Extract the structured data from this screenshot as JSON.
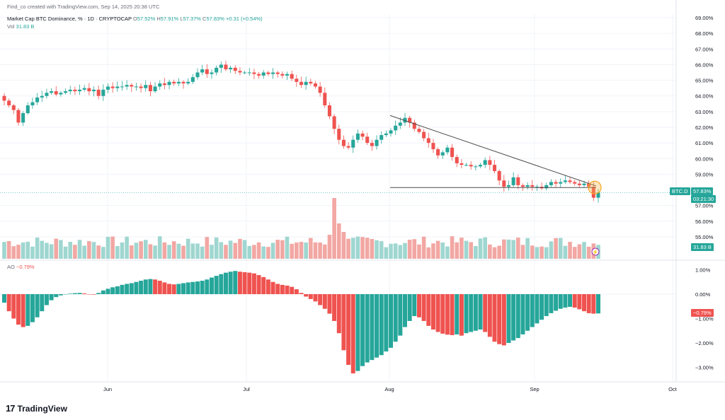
{
  "header": {
    "creator": "Find_co created with TradingView.com, Sep 14, 2025 20:38 UTC",
    "symbol": "Market Cap BTC Dominance, % · 1D · CRYPTOCAP",
    "open_label": "O",
    "open": "57.52%",
    "high_label": "H",
    "high": "57.91%",
    "low_label": "L",
    "low": "57.37%",
    "close_label": "C",
    "close": "57.83%",
    "change": "+0.31 (+0.54%)",
    "vol_label": "Vol",
    "vol_value": "31.83 B"
  },
  "ao": {
    "label": "AO",
    "value": "−0.79%"
  },
  "badges": {
    "symbol": "BTC.D",
    "price": "57.83%",
    "timer": "03:21:30",
    "volume": "31.83 B",
    "ao": "−0.79%"
  },
  "branding": {
    "logo_mark": "17",
    "name": "TradingView"
  },
  "colors": {
    "up": "#26a69a",
    "down": "#ef5350",
    "up_vol": "#9fd6d0",
    "down_vol": "#f2a7a3",
    "grid": "#f0f3fa"
  },
  "chart_data": [
    {
      "type": "candlestick",
      "title": "Market Cap BTC Dominance, % · 1D · CRYPTOCAP",
      "x_axis": {
        "ticks": [
          "Jun",
          "Jul",
          "Aug",
          "Sep",
          "Oct"
        ]
      },
      "y_axis": {
        "ticks": [
          "69.00%",
          "68.00%",
          "67.00%",
          "66.00%",
          "65.00%",
          "64.00%",
          "63.00%",
          "62.00%",
          "61.00%",
          "60.00%",
          "59.00%",
          "57.00%",
          "56.00%",
          "55.00%"
        ],
        "ylim": [
          54.3,
          69.2
        ]
      },
      "last_price": 57.83,
      "close_series": [
        63.7,
        63.4,
        63.1,
        62.3,
        62.9,
        63.4,
        63.6,
        63.9,
        64.0,
        64.2,
        64.3,
        64.1,
        64.2,
        64.3,
        64.4,
        64.3,
        64.4,
        64.5,
        64.3,
        64.4,
        64.0,
        64.4,
        64.6,
        64.5,
        64.6,
        64.6,
        64.7,
        64.6,
        64.6,
        64.5,
        64.7,
        64.3,
        64.6,
        64.8,
        64.7,
        64.9,
        64.8,
        64.9,
        64.8,
        64.9,
        65.2,
        65.5,
        65.7,
        65.4,
        65.5,
        65.8,
        66.0,
        65.7,
        65.8,
        65.6,
        65.5,
        65.5,
        65.5,
        65.4,
        65.3,
        65.5,
        65.4,
        65.5,
        65.4,
        65.3,
        65.4,
        65.1,
        64.9,
        64.7,
        64.9,
        64.8,
        64.6,
        64.2,
        63.4,
        62.7,
        61.9,
        61.2,
        60.8,
        60.7,
        61.2,
        61.6,
        61.4,
        61.0,
        60.8,
        61.2,
        61.5,
        61.6,
        61.8,
        62.1,
        62.3,
        62.6,
        62.3,
        61.9,
        61.7,
        61.3,
        61.0,
        60.6,
        60.2,
        60.4,
        60.7,
        60.1,
        59.7,
        59.6,
        59.6,
        59.5,
        59.5,
        59.6,
        59.9,
        59.6,
        59.2,
        58.6,
        58.2,
        58.3,
        58.8,
        58.3,
        58.2,
        58.3,
        58.2,
        58.2,
        58.1,
        58.3,
        58.5,
        58.4,
        58.5,
        58.6,
        58.5,
        58.4,
        58.3,
        58.4,
        58.2,
        57.5,
        57.83
      ],
      "trendline_resistance": {
        "from": 62.75,
        "to": 58.25
      },
      "support_line": 58.15
    },
    {
      "type": "bar",
      "title": "Vol",
      "last_value": "31.83 B"
    },
    {
      "type": "bar",
      "title": "AO",
      "y_axis": {
        "ticks": [
          "1.00%",
          "0.00%",
          "−1.00%",
          "−2.00%",
          "−3.00%"
        ],
        "ylim": [
          -3.3,
          1.1
        ]
      },
      "last_value": -0.79,
      "values": [
        -0.35,
        -0.7,
        -1.0,
        -1.25,
        -1.35,
        -1.3,
        -1.15,
        -0.95,
        -0.7,
        -0.45,
        -0.25,
        -0.12,
        -0.05,
        0.0,
        0.02,
        0.04,
        0.05,
        0.03,
        0.0,
        -0.02,
        0.05,
        0.15,
        0.22,
        0.28,
        0.32,
        0.38,
        0.42,
        0.45,
        0.5,
        0.55,
        0.6,
        0.62,
        0.6,
        0.55,
        0.48,
        0.42,
        0.4,
        0.42,
        0.45,
        0.48,
        0.5,
        0.52,
        0.55,
        0.6,
        0.68,
        0.75,
        0.82,
        0.88,
        0.92,
        0.95,
        0.92,
        0.9,
        0.88,
        0.85,
        0.78,
        0.7,
        0.6,
        0.5,
        0.42,
        0.38,
        0.35,
        0.3,
        0.2,
        0.05,
        -0.1,
        -0.2,
        -0.3,
        -0.45,
        -0.6,
        -0.8,
        -1.1,
        -1.6,
        -2.3,
        -2.9,
        -3.25,
        -3.15,
        -2.95,
        -2.8,
        -2.7,
        -2.6,
        -2.5,
        -2.35,
        -2.2,
        -1.95,
        -1.7,
        -1.35,
        -1.1,
        -0.9,
        -0.95,
        -1.1,
        -1.3,
        -1.45,
        -1.55,
        -1.62,
        -1.66,
        -1.68,
        -1.65,
        -1.7,
        -1.6,
        -1.55,
        -1.5,
        -1.45,
        -1.55,
        -1.75,
        -1.95,
        -2.05,
        -2.1,
        -2.0,
        -1.9,
        -1.8,
        -1.65,
        -1.5,
        -1.35,
        -1.2,
        -1.05,
        -0.9,
        -0.78,
        -0.68,
        -0.6,
        -0.55,
        -0.52,
        -0.55,
        -0.62,
        -0.7,
        -0.78,
        -0.8,
        -0.79
      ]
    }
  ]
}
